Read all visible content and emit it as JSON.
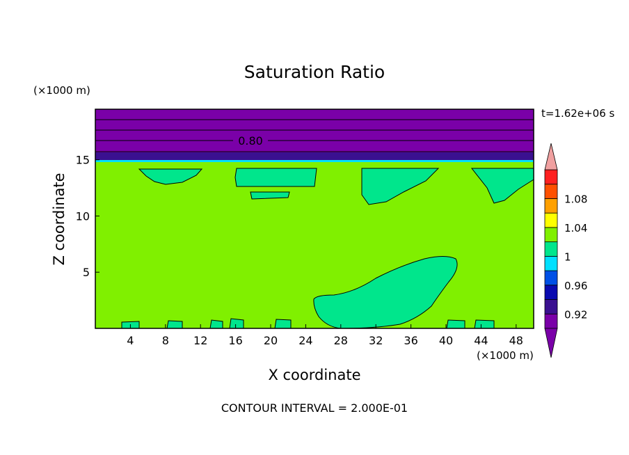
{
  "chart_data": {
    "type": "contour",
    "title": "Saturation Ratio",
    "xlabel": "X coordinate",
    "ylabel": "Z coordinate",
    "x_unit": "(×1000 m)",
    "y_unit": "(×1000 m)",
    "time_label": "t=1.62e+06 s",
    "footer": "CONTOUR INTERVAL = 2.000E-01",
    "contour_label": "0.80",
    "xlim": [
      0,
      50
    ],
    "ylim": [
      0,
      19.5
    ],
    "x_ticks": [
      4,
      8,
      12,
      16,
      20,
      24,
      28,
      32,
      36,
      40,
      44,
      48
    ],
    "y_ticks": [
      5,
      10,
      15
    ],
    "grid": false,
    "colorbar": {
      "levels": [
        {
          "value": 0.9,
          "color": "#7a00a8"
        },
        {
          "value": 0.92,
          "color": "#3a1090"
        },
        {
          "value": 0.94,
          "color": "#0a0ab0"
        },
        {
          "value": 0.96,
          "color": "#0050e6"
        },
        {
          "value": 0.98,
          "color": "#00e0ff"
        },
        {
          "value": 1.0,
          "color": "#00e68c"
        },
        {
          "value": 1.02,
          "color": "#80f000"
        },
        {
          "value": 1.04,
          "color": "#ffff00"
        },
        {
          "value": 1.06,
          "color": "#ffa000"
        },
        {
          "value": 1.08,
          "color": "#ff5000"
        },
        {
          "value": 1.1,
          "color": "#ff2020"
        }
      ],
      "over_color": "#f0a0a0",
      "under_color": "#7a00a8",
      "labels": [
        "1.08",
        "1.04",
        "1",
        "0.96",
        "0.92"
      ]
    },
    "regions": {
      "background_color": "#80f000",
      "upper_layer_color": "#7a00a8",
      "transition_color": "#3a1090",
      "cyan_line_color": "#00e0ff",
      "blob_color": "#00e68c"
    }
  }
}
